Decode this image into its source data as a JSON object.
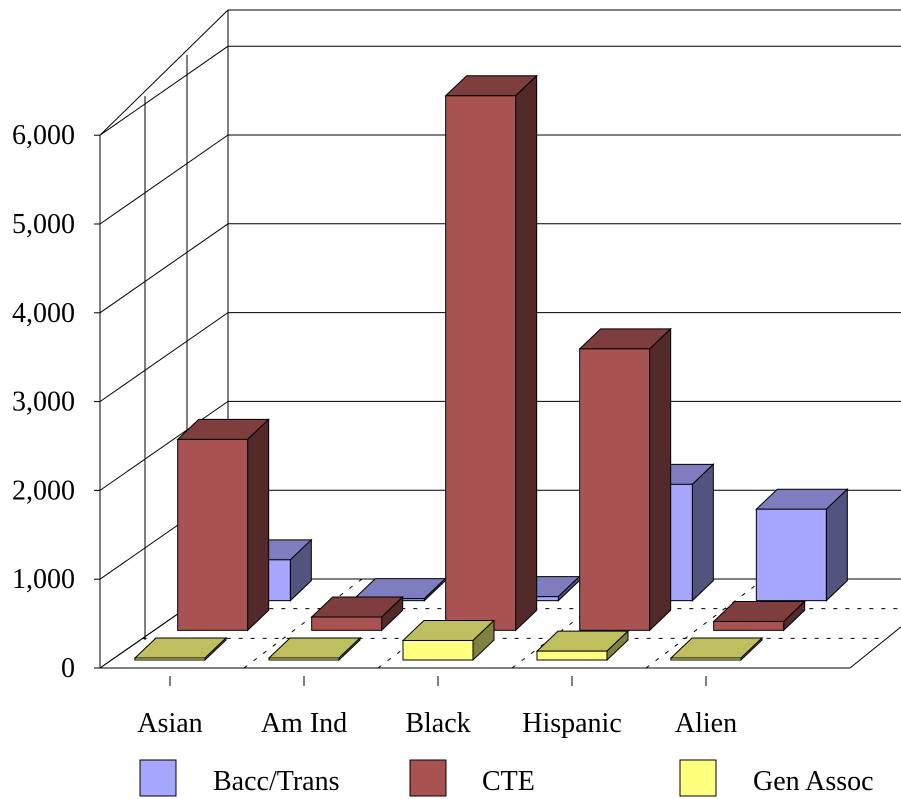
{
  "chart_data": {
    "type": "bar",
    "title": "",
    "xlabel": "",
    "ylabel": "",
    "ylim": [
      0,
      6000
    ],
    "yticks": [
      "0",
      "1,000",
      "2,000",
      "3,000",
      "4,000",
      "5,000",
      "6,000"
    ],
    "categories": [
      "Asian",
      "Am Ind",
      "Black",
      "Hispanic",
      "Alien"
    ],
    "series": [
      {
        "name": "Bacc/Trans",
        "color": "#a6a6ff",
        "values": [
          460,
          0,
          45,
          1310,
          1030
        ]
      },
      {
        "name": "CTE",
        "color": "#a85252",
        "values": [
          2150,
          150,
          6020,
          3170,
          100
        ]
      },
      {
        "name": "Gen Assoc",
        "color": "#ffff80",
        "values": [
          20,
          0,
          220,
          100,
          0
        ]
      }
    ],
    "projection": "3d-depth",
    "grid": true,
    "legend": "bottom"
  }
}
